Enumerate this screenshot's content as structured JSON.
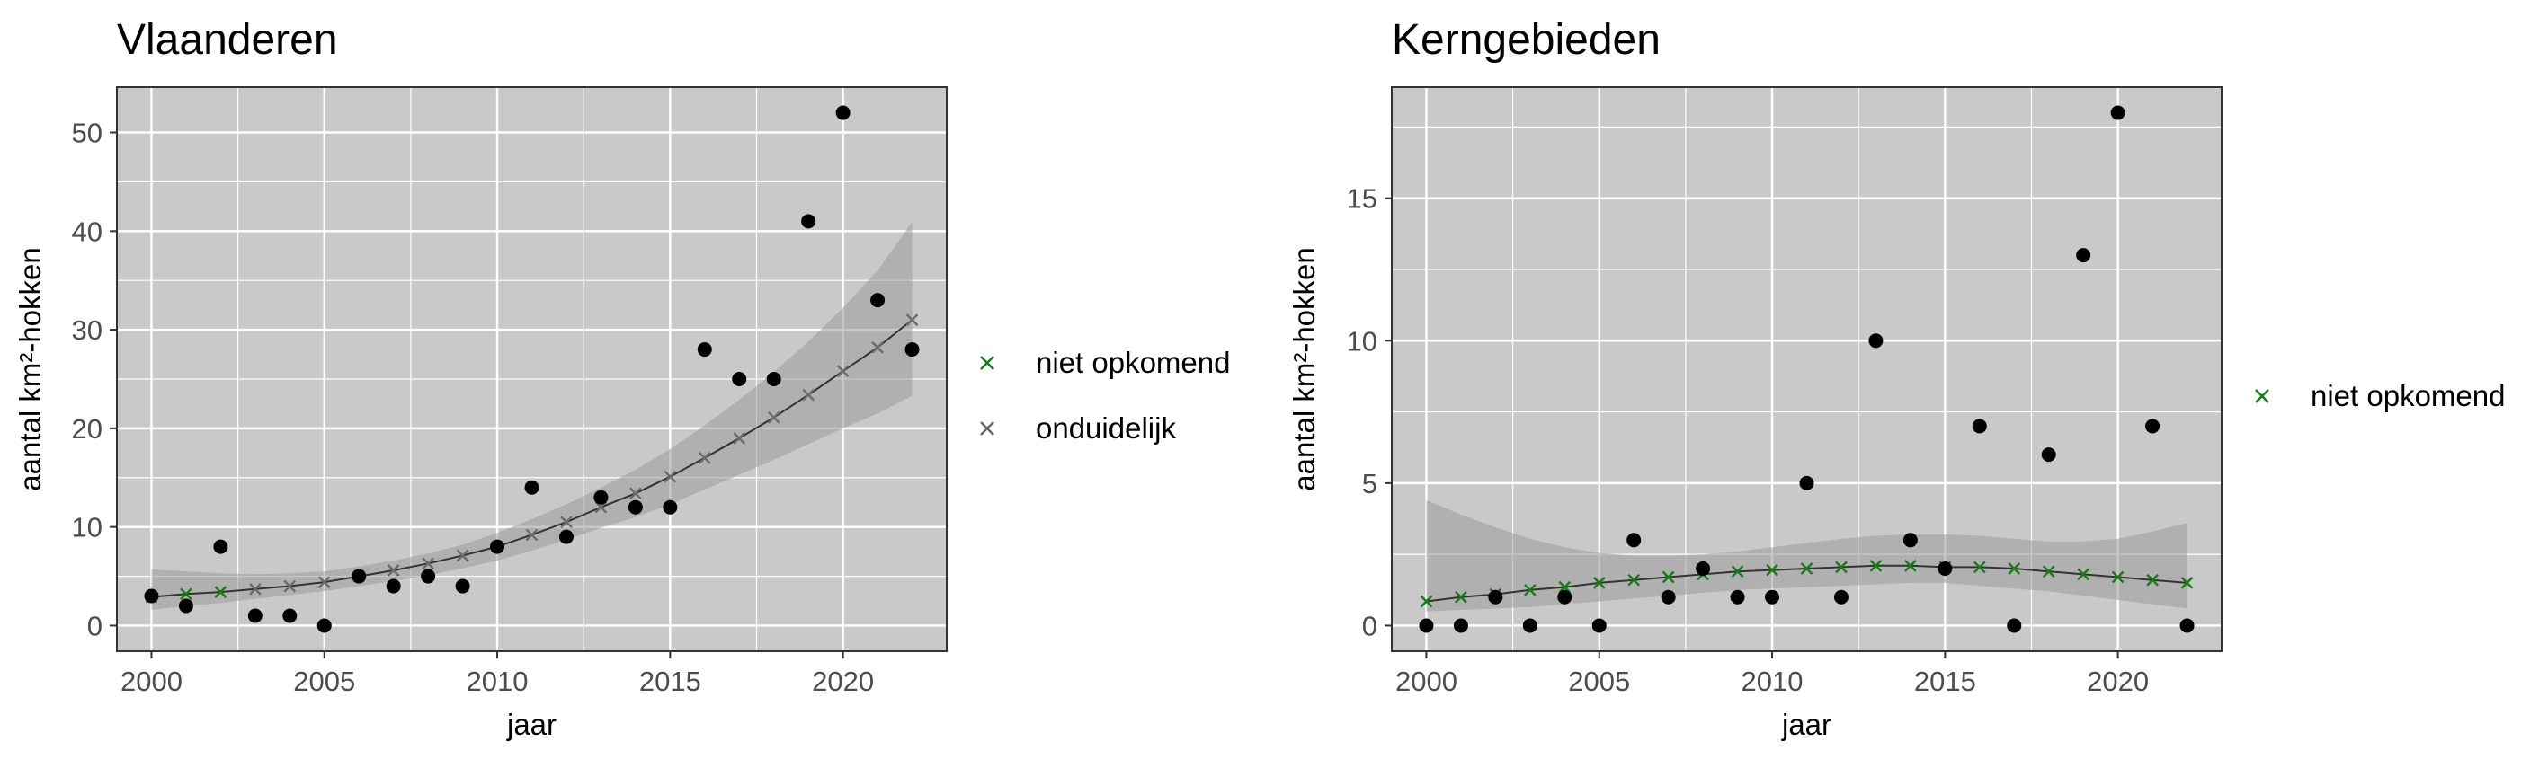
{
  "chart_data": [
    {
      "type": "scatter",
      "title": "Vlaanderen",
      "xlabel": "jaar",
      "ylabel": "aantal km²-hokken",
      "xlim": [
        1999,
        2023
      ],
      "ylim": [
        -2.6,
        54.6
      ],
      "xticks": [
        2000,
        2005,
        2010,
        2015,
        2020
      ],
      "yticks": [
        0,
        10,
        20,
        30,
        40,
        50
      ],
      "grid": true,
      "legend_position": "right",
      "legend": [
        {
          "label": "niet opkomend",
          "color": "#1a7a1a",
          "marker": "×"
        },
        {
          "label": "onduidelijk",
          "color": "#6b6b6b",
          "marker": "×"
        }
      ],
      "observed": {
        "x": [
          2000,
          2001,
          2002,
          2003,
          2004,
          2005,
          2006,
          2007,
          2008,
          2009,
          2010,
          2011,
          2012,
          2013,
          2014,
          2015,
          2016,
          2017,
          2018,
          2019,
          2020,
          2021,
          2022
        ],
        "y": [
          3,
          2,
          8,
          1,
          1,
          0,
          5,
          4,
          5,
          4,
          8,
          14,
          9,
          13,
          12,
          12,
          28,
          25,
          25,
          41,
          52,
          33,
          28
        ]
      },
      "fit": {
        "x": [
          2000,
          2001,
          2002,
          2003,
          2004,
          2005,
          2006,
          2007,
          2008,
          2009,
          2010,
          2011,
          2012,
          2013,
          2014,
          2015,
          2016,
          2017,
          2018,
          2019,
          2020,
          2021,
          2022
        ],
        "y": [
          2.9,
          3.2,
          3.4,
          3.7,
          4.0,
          4.4,
          5.0,
          5.6,
          6.3,
          7.1,
          8.0,
          9.2,
          10.5,
          12.0,
          13.4,
          15.1,
          17.0,
          19.0,
          21.1,
          23.4,
          25.8,
          28.2,
          31.0
        ],
        "lower": [
          1.6,
          2.0,
          2.3,
          2.7,
          3.1,
          3.5,
          4.0,
          4.5,
          5.1,
          5.8,
          6.6,
          7.6,
          8.7,
          9.9,
          11.0,
          12.3,
          13.8,
          15.3,
          16.8,
          18.4,
          20.0,
          21.5,
          23.3
        ],
        "upper": [
          5.7,
          5.5,
          5.3,
          5.2,
          5.3,
          5.5,
          6.0,
          6.6,
          7.3,
          8.2,
          9.4,
          10.8,
          12.3,
          14.0,
          15.8,
          17.9,
          20.3,
          22.9,
          25.7,
          28.8,
          32.2,
          36.0,
          40.9
        ],
        "markers": [
          {
            "x": 2000,
            "cat": "niet opkomend"
          },
          {
            "x": 2001,
            "cat": "niet opkomend"
          },
          {
            "x": 2002,
            "cat": "niet opkomend"
          },
          {
            "x": 2003,
            "cat": "onduidelijk"
          },
          {
            "x": 2004,
            "cat": "onduidelijk"
          },
          {
            "x": 2005,
            "cat": "onduidelijk"
          },
          {
            "x": 2006,
            "cat": "onduidelijk"
          },
          {
            "x": 2007,
            "cat": "onduidelijk"
          },
          {
            "x": 2008,
            "cat": "onduidelijk"
          },
          {
            "x": 2009,
            "cat": "onduidelijk"
          },
          {
            "x": 2010,
            "cat": "onduidelijk"
          },
          {
            "x": 2011,
            "cat": "onduidelijk"
          },
          {
            "x": 2012,
            "cat": "onduidelijk"
          },
          {
            "x": 2013,
            "cat": "onduidelijk"
          },
          {
            "x": 2014,
            "cat": "onduidelijk"
          },
          {
            "x": 2015,
            "cat": "onduidelijk"
          },
          {
            "x": 2016,
            "cat": "onduidelijk"
          },
          {
            "x": 2017,
            "cat": "onduidelijk"
          },
          {
            "x": 2018,
            "cat": "onduidelijk"
          },
          {
            "x": 2019,
            "cat": "onduidelijk"
          },
          {
            "x": 2020,
            "cat": "onduidelijk"
          },
          {
            "x": 2021,
            "cat": "onduidelijk"
          },
          {
            "x": 2022,
            "cat": "onduidelijk"
          }
        ]
      }
    },
    {
      "type": "scatter",
      "title": "Kerngebieden",
      "xlabel": "jaar",
      "ylabel": "aantal km²-hokken",
      "xlim": [
        1999,
        2023
      ],
      "ylim": [
        -0.9,
        18.9
      ],
      "xticks": [
        2000,
        2005,
        2010,
        2015,
        2020
      ],
      "yticks": [
        0,
        5,
        10,
        15
      ],
      "grid": true,
      "legend_position": "right",
      "legend": [
        {
          "label": "niet opkomend",
          "color": "#1a7a1a",
          "marker": "×"
        }
      ],
      "observed": {
        "x": [
          2000,
          2001,
          2002,
          2003,
          2004,
          2005,
          2006,
          2007,
          2008,
          2009,
          2010,
          2011,
          2012,
          2013,
          2014,
          2015,
          2016,
          2017,
          2018,
          2019,
          2020,
          2021,
          2022
        ],
        "y": [
          0,
          0,
          1,
          0,
          1,
          0,
          3,
          1,
          2,
          1,
          1,
          5,
          1,
          10,
          3,
          2,
          7,
          0,
          6,
          13,
          18,
          7,
          0
        ]
      },
      "fit": {
        "x": [
          2000,
          2001,
          2002,
          2003,
          2004,
          2005,
          2006,
          2007,
          2008,
          2009,
          2010,
          2011,
          2012,
          2013,
          2014,
          2015,
          2016,
          2017,
          2018,
          2019,
          2020,
          2021,
          2022
        ],
        "y": [
          0.85,
          1.0,
          1.1,
          1.25,
          1.35,
          1.5,
          1.6,
          1.7,
          1.8,
          1.9,
          1.95,
          2.0,
          2.05,
          2.1,
          2.1,
          2.05,
          2.05,
          2.0,
          1.9,
          1.8,
          1.7,
          1.6,
          1.5
        ],
        "lower": [
          0.5,
          0.55,
          0.6,
          0.65,
          0.75,
          0.85,
          0.95,
          1.05,
          1.15,
          1.25,
          1.3,
          1.35,
          1.4,
          1.45,
          1.5,
          1.5,
          1.4,
          1.3,
          1.2,
          1.05,
          0.9,
          0.75,
          0.6
        ],
        "upper": [
          4.4,
          3.9,
          3.45,
          3.05,
          2.75,
          2.55,
          2.45,
          2.45,
          2.5,
          2.6,
          2.75,
          2.9,
          3.05,
          3.15,
          3.2,
          3.2,
          3.15,
          3.05,
          2.95,
          2.95,
          3.05,
          3.3,
          3.6
        ],
        "markers": [
          {
            "x": 2000,
            "cat": "niet opkomend"
          },
          {
            "x": 2001,
            "cat": "niet opkomend"
          },
          {
            "x": 2002,
            "cat": "niet opkomend"
          },
          {
            "x": 2003,
            "cat": "niet opkomend"
          },
          {
            "x": 2004,
            "cat": "niet opkomend"
          },
          {
            "x": 2005,
            "cat": "niet opkomend"
          },
          {
            "x": 2006,
            "cat": "niet opkomend"
          },
          {
            "x": 2007,
            "cat": "niet opkomend"
          },
          {
            "x": 2008,
            "cat": "niet opkomend"
          },
          {
            "x": 2009,
            "cat": "niet opkomend"
          },
          {
            "x": 2010,
            "cat": "niet opkomend"
          },
          {
            "x": 2011,
            "cat": "niet opkomend"
          },
          {
            "x": 2012,
            "cat": "niet opkomend"
          },
          {
            "x": 2013,
            "cat": "niet opkomend"
          },
          {
            "x": 2014,
            "cat": "niet opkomend"
          },
          {
            "x": 2015,
            "cat": "niet opkomend"
          },
          {
            "x": 2016,
            "cat": "niet opkomend"
          },
          {
            "x": 2017,
            "cat": "niet opkomend"
          },
          {
            "x": 2018,
            "cat": "niet opkomend"
          },
          {
            "x": 2019,
            "cat": "niet opkomend"
          },
          {
            "x": 2020,
            "cat": "niet opkomend"
          },
          {
            "x": 2021,
            "cat": "niet opkomend"
          },
          {
            "x": 2022,
            "cat": "niet opkomend"
          }
        ]
      }
    }
  ],
  "colors": {
    "panel_background": "#c9c9c9",
    "grid": "#ffffff",
    "ribbon": "#9a9a9a",
    "fit_line": "#333333",
    "points": "#000000",
    "niet_opkomend": "#1a7a1a",
    "onduidelijk": "#6b6b6b"
  }
}
